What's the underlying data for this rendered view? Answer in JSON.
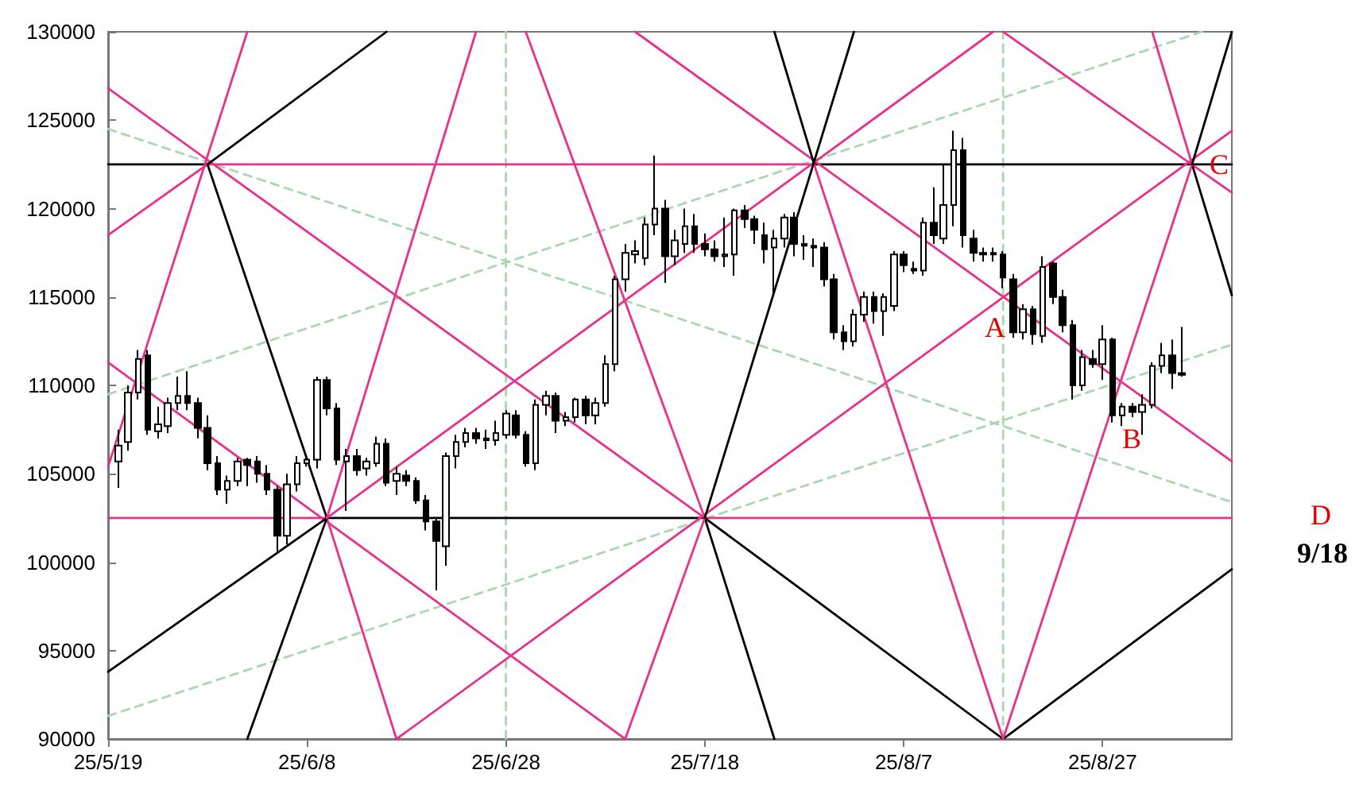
{
  "chart_data": {
    "type": "candlestick",
    "color": "#000000",
    "xlim": [
      "--05-19",
      "--09-09"
    ],
    "ylim": [
      90000,
      130000
    ],
    "xticks": [
      {
        "value": "--05-19",
        "label": "25/5/19"
      },
      {
        "value": "--06-08",
        "label": "25/6/8"
      },
      {
        "value": "--06-28",
        "label": "25/6/28"
      },
      {
        "value": "--07-18",
        "label": "25/7/18"
      },
      {
        "value": "--08-07",
        "label": "25/8/7"
      },
      {
        "value": "--08-27",
        "label": "25/8/27"
      }
    ],
    "yticks": [
      90000,
      95000,
      100000,
      105000,
      110000,
      115000,
      120000,
      125000,
      130000
    ],
    "x": [
      "--05-20",
      "--05-21",
      "--05-22",
      "--05-23",
      "--05-24",
      "--05-25",
      "--05-26",
      "--05-27",
      "--05-28",
      "--05-29",
      "--05-30",
      "--05-31",
      "--06-01",
      "--06-02",
      "--06-03",
      "--06-04",
      "--06-05",
      "--06-06",
      "--06-07",
      "--06-08",
      "--06-09",
      "--06-10",
      "--06-11",
      "--06-12",
      "--06-13",
      "--06-14",
      "--06-15",
      "--06-16",
      "--06-17",
      "--06-18",
      "--06-19",
      "--06-20",
      "--06-21",
      "--06-22",
      "--06-23",
      "--06-24",
      "--06-25",
      "--06-26",
      "--06-27",
      "--06-28",
      "--06-29",
      "--06-30",
      "--07-01",
      "--07-02",
      "--07-03",
      "--07-04",
      "--07-05",
      "--07-06",
      "--07-07",
      "--07-08",
      "--07-09",
      "--07-10",
      "--07-11",
      "--07-12",
      "--07-13",
      "--07-14",
      "--07-15",
      "--07-16",
      "--07-17",
      "--07-18",
      "--07-19",
      "--07-20",
      "--07-21",
      "--07-22",
      "--07-23",
      "--07-24",
      "--07-25",
      "--07-26",
      "--07-27",
      "--07-28",
      "--07-29",
      "--07-30",
      "--07-31",
      "--08-01",
      "--08-02",
      "--08-03",
      "--08-04",
      "--08-05",
      "--08-06",
      "--08-07",
      "--08-08",
      "--08-09",
      "--08-10",
      "--08-11",
      "--08-12",
      "--08-13",
      "--08-14",
      "--08-15",
      "--08-16",
      "--08-17",
      "--08-18",
      "--08-19",
      "--08-20",
      "--08-21",
      "--08-22",
      "--08-23",
      "--08-24",
      "--08-25",
      "--08-26",
      "--08-27",
      "--08-28",
      "--08-29",
      "--08-30",
      "--08-31",
      "--09-01",
      "--09-02",
      "--09-03",
      "--09-04"
    ],
    "ohlc": [
      [
        105700,
        107500,
        104200,
        106600
      ],
      [
        106800,
        110000,
        106300,
        109600
      ],
      [
        109600,
        112000,
        109200,
        111500
      ],
      [
        111700,
        112000,
        107200,
        107500
      ],
      [
        107400,
        108800,
        107000,
        107800
      ],
      [
        107700,
        109300,
        107300,
        109000
      ],
      [
        109000,
        110500,
        108600,
        109400
      ],
      [
        109400,
        110800,
        108600,
        109000
      ],
      [
        109000,
        109300,
        107000,
        107600
      ],
      [
        107600,
        108300,
        105200,
        105600
      ],
      [
        105600,
        106000,
        103800,
        104100
      ],
      [
        104100,
        104900,
        103300,
        104600
      ],
      [
        104600,
        105900,
        104300,
        105700
      ],
      [
        105800,
        105900,
        104300,
        105500
      ],
      [
        105700,
        106000,
        104500,
        105000
      ],
      [
        105000,
        105500,
        103800,
        104100
      ],
      [
        104100,
        104300,
        100500,
        101500
      ],
      [
        101500,
        105000,
        101000,
        104400
      ],
      [
        104400,
        106000,
        104000,
        105600
      ],
      [
        105600,
        106000,
        105400,
        105800
      ],
      [
        105800,
        110500,
        105300,
        110300
      ],
      [
        110300,
        110500,
        108300,
        108700
      ],
      [
        108700,
        109000,
        105500,
        105800
      ],
      [
        105700,
        106400,
        102900,
        106000
      ],
      [
        106000,
        106400,
        104900,
        105200
      ],
      [
        105300,
        105900,
        104900,
        105700
      ],
      [
        105600,
        107100,
        105400,
        106700
      ],
      [
        106700,
        107000,
        104300,
        104500
      ],
      [
        104600,
        105400,
        103800,
        105000
      ],
      [
        104900,
        105200,
        104300,
        104600
      ],
      [
        104600,
        104800,
        103300,
        103500
      ],
      [
        103500,
        103800,
        101800,
        102300
      ],
      [
        102300,
        102500,
        98400,
        101200
      ],
      [
        100900,
        106200,
        99800,
        106000
      ],
      [
        106000,
        107200,
        105300,
        106800
      ],
      [
        106800,
        107600,
        106500,
        107300
      ],
      [
        107300,
        107600,
        106700,
        107000
      ],
      [
        107000,
        107500,
        106400,
        106900
      ],
      [
        106900,
        108000,
        106600,
        107300
      ],
      [
        107200,
        108600,
        107000,
        108400
      ],
      [
        108300,
        108600,
        107000,
        107200
      ],
      [
        107200,
        107400,
        105400,
        105600
      ],
      [
        105600,
        109200,
        105200,
        108900
      ],
      [
        108900,
        109700,
        108300,
        109400
      ],
      [
        109400,
        109600,
        107300,
        108000
      ],
      [
        108000,
        108500,
        107700,
        108200
      ],
      [
        108200,
        109300,
        107900,
        109200
      ],
      [
        109200,
        109400,
        107800,
        108300
      ],
      [
        108300,
        109300,
        107800,
        109000
      ],
      [
        109000,
        111700,
        108800,
        111200
      ],
      [
        111200,
        116200,
        110800,
        116000
      ],
      [
        116000,
        118000,
        115300,
        117500
      ],
      [
        117400,
        118200,
        116900,
        117600
      ],
      [
        117200,
        119500,
        116800,
        119100
      ],
      [
        119100,
        123000,
        118500,
        120000
      ],
      [
        120000,
        120500,
        115800,
        117300
      ],
      [
        117300,
        118800,
        116800,
        118200
      ],
      [
        118000,
        120000,
        117500,
        119000
      ],
      [
        119000,
        119700,
        117500,
        118000
      ],
      [
        118000,
        118600,
        117300,
        117700
      ],
      [
        117700,
        118200,
        117000,
        117300
      ],
      [
        117300,
        119500,
        116700,
        117400
      ],
      [
        117400,
        120000,
        116200,
        119900
      ],
      [
        119900,
        120200,
        118900,
        119400
      ],
      [
        119400,
        119600,
        118000,
        118800
      ],
      [
        118500,
        119200,
        116900,
        117700
      ],
      [
        117800,
        118800,
        115100,
        118300
      ],
      [
        118300,
        119700,
        117800,
        119500
      ],
      [
        119500,
        119800,
        117300,
        118000
      ],
      [
        118000,
        118500,
        117100,
        117900
      ],
      [
        117900,
        118300,
        116700,
        117800
      ],
      [
        117800,
        118100,
        115600,
        116000
      ],
      [
        116000,
        116300,
        112600,
        113000
      ],
      [
        113000,
        113400,
        112000,
        112500
      ],
      [
        112500,
        114300,
        112200,
        114000
      ],
      [
        114000,
        115300,
        113600,
        115000
      ],
      [
        115000,
        115300,
        113500,
        114200
      ],
      [
        114200,
        115200,
        112800,
        115000
      ],
      [
        114500,
        117600,
        114200,
        117400
      ],
      [
        117400,
        117600,
        116400,
        116800
      ],
      [
        116600,
        117000,
        116300,
        116500
      ],
      [
        116500,
        119500,
        116200,
        119200
      ],
      [
        119200,
        121200,
        118000,
        118500
      ],
      [
        118300,
        122500,
        118000,
        120200
      ],
      [
        120200,
        124400,
        119000,
        123300
      ],
      [
        123300,
        124000,
        117800,
        118500
      ],
      [
        118300,
        118800,
        117000,
        117500
      ],
      [
        117500,
        117800,
        117000,
        117400
      ],
      [
        117400,
        117800,
        117000,
        117500
      ],
      [
        117400,
        117600,
        115500,
        116100
      ],
      [
        116000,
        116300,
        112700,
        113000
      ],
      [
        113000,
        114600,
        112600,
        114300
      ],
      [
        114300,
        114500,
        112300,
        112900
      ],
      [
        112800,
        117300,
        112400,
        116700
      ],
      [
        116900,
        117000,
        114600,
        115000
      ],
      [
        115000,
        115400,
        113000,
        113400
      ],
      [
        113400,
        113700,
        109200,
        110000
      ],
      [
        110000,
        112000,
        109700,
        111600
      ],
      [
        111500,
        112000,
        111000,
        111200
      ],
      [
        111200,
        113400,
        110300,
        112600
      ],
      [
        112600,
        112700,
        107900,
        108300
      ],
      [
        108300,
        109000,
        107700,
        108800
      ],
      [
        108800,
        109000,
        108200,
        108500
      ],
      [
        108500,
        109500,
        107200,
        108900
      ],
      [
        108900,
        111300,
        108700,
        111100
      ],
      [
        111100,
        112400,
        110700,
        111700
      ],
      [
        111700,
        112600,
        109800,
        110700
      ],
      [
        110700,
        113300,
        110500,
        110600
      ]
    ],
    "series": [
      {
        "type": "line",
        "color": "#a9d8ae",
        "line_style": "dashed",
        "x": [
          "--06-28",
          "--06-28"
        ],
        "values": [
          90000,
          130000
        ]
      },
      {
        "type": "line",
        "color": "#a9d8ae",
        "line_style": "dashed",
        "x": [
          "--08-17",
          "--08-17"
        ],
        "values": [
          90000,
          130000
        ]
      },
      {
        "type": "line",
        "color": "#a9d8ae",
        "line_style": "dashed",
        "x": [
          "--05-19",
          "--09-09"
        ],
        "values": [
          124500,
          103400
        ]
      },
      {
        "type": "line",
        "color": "#a9d8ae",
        "line_style": "dashed",
        "x": [
          "--05-19",
          "--09-06"
        ],
        "values": [
          109500,
          130000
        ]
      },
      {
        "type": "line",
        "color": "#a9d8ae",
        "line_style": "dashed",
        "x": [
          "--05-19",
          "--09-09"
        ],
        "values": [
          91300,
          112300
        ]
      },
      {
        "type": "line",
        "color": "#000000",
        "x": [
          "--05-19",
          "--05-29"
        ],
        "values": [
          122500,
          122500
        ]
      },
      {
        "type": "line",
        "color": "#e8318a",
        "x": [
          "--05-29",
          "--07-29"
        ],
        "values": [
          122500,
          122500
        ]
      },
      {
        "type": "line",
        "color": "#000000",
        "x": [
          "--07-29",
          "--09-09"
        ],
        "values": [
          122500,
          122500
        ]
      },
      {
        "type": "line",
        "color": "#e8318a",
        "x": [
          "--05-19",
          "--06-10"
        ],
        "values": [
          102500,
          102500
        ]
      },
      {
        "type": "line",
        "color": "#000000",
        "x": [
          "--06-10",
          "--07-18"
        ],
        "values": [
          102500,
          102500
        ]
      },
      {
        "type": "line",
        "color": "#e8318a",
        "x": [
          "--07-18",
          "--09-09"
        ],
        "values": [
          102500,
          102500
        ]
      },
      {
        "type": "line",
        "color": "#e8318a",
        "x": [
          "--05-19",
          "--07-18"
        ],
        "values": [
          126800,
          102500
        ]
      },
      {
        "type": "line",
        "color": "#000000",
        "x": [
          "--07-18",
          "--08-17"
        ],
        "values": [
          102500,
          90000
        ]
      },
      {
        "type": "line",
        "color": "#e8318a",
        "x": [
          "--05-19",
          "--07-10"
        ],
        "values": [
          111300,
          90000
        ]
      },
      {
        "type": "line",
        "color": "#e8318a",
        "x": [
          "--07-11",
          "--09-09"
        ],
        "values": [
          130000,
          105700
        ]
      },
      {
        "type": "line",
        "color": "#e8318a",
        "x": [
          "--08-17",
          "--09-09"
        ],
        "values": [
          130000,
          120900
        ]
      },
      {
        "type": "line",
        "color": "#000000",
        "x": [
          "--05-19",
          "--06-10"
        ],
        "values": [
          93800,
          102500
        ]
      },
      {
        "type": "line",
        "color": "#e8318a",
        "x": [
          "--06-10",
          "--08-16"
        ],
        "values": [
          102500,
          130000
        ]
      },
      {
        "type": "line",
        "color": "#e8318a",
        "x": [
          "--06-17",
          "--09-09"
        ],
        "values": [
          90000,
          124400
        ]
      },
      {
        "type": "line",
        "color": "#000000",
        "x": [
          "--08-17",
          "--09-09"
        ],
        "values": [
          90000,
          99600
        ]
      },
      {
        "type": "line",
        "color": "#e8318a",
        "x": [
          "--05-19",
          "--05-29"
        ],
        "values": [
          118500,
          122500
        ]
      },
      {
        "type": "line",
        "color": "#000000",
        "x": [
          "--05-29",
          "--06-16"
        ],
        "values": [
          122500,
          130000
        ]
      },
      {
        "type": "line",
        "color": "#000000",
        "x": [
          "--05-29",
          "--06-10"
        ],
        "values": [
          122500,
          102500
        ]
      },
      {
        "type": "line",
        "color": "#e8318a",
        "x": [
          "--06-10",
          "--06-17"
        ],
        "values": [
          102500,
          90000
        ]
      },
      {
        "type": "line",
        "color": "#000000",
        "x": [
          "--07-25",
          "--07-29"
        ],
        "values": [
          130000,
          122500
        ]
      },
      {
        "type": "line",
        "color": "#e8318a",
        "x": [
          "--07-29",
          "--08-17"
        ],
        "values": [
          122500,
          90000
        ]
      },
      {
        "type": "line",
        "color": "#e8318a",
        "x": [
          "--06-30",
          "--07-18"
        ],
        "values": [
          130000,
          102500
        ]
      },
      {
        "type": "line",
        "color": "#000000",
        "x": [
          "--07-18",
          "--07-25"
        ],
        "values": [
          102500,
          90000
        ]
      },
      {
        "type": "line",
        "color": "#e8318a",
        "x": [
          "--09-01",
          "--09-05"
        ],
        "values": [
          130000,
          122500
        ]
      },
      {
        "type": "line",
        "color": "#000000",
        "x": [
          "--09-05",
          "--09-09"
        ],
        "values": [
          122500,
          115100
        ]
      },
      {
        "type": "line",
        "color": "#e8318a",
        "x": [
          "--05-19",
          "--06-02"
        ],
        "values": [
          105400,
          130000
        ]
      },
      {
        "type": "line",
        "color": "#000000",
        "x": [
          "--06-02",
          "--06-10"
        ],
        "values": [
          90000,
          102500
        ]
      },
      {
        "type": "line",
        "color": "#e8318a",
        "x": [
          "--06-10",
          "--06-25"
        ],
        "values": [
          102500,
          130000
        ]
      },
      {
        "type": "line",
        "color": "#e8318a",
        "x": [
          "--07-10",
          "--07-18"
        ],
        "values": [
          90000,
          102500
        ]
      },
      {
        "type": "line",
        "color": "#000000",
        "x": [
          "--07-18",
          "--08-02"
        ],
        "values": [
          102500,
          130000
        ]
      },
      {
        "type": "line",
        "color": "#e8318a",
        "x": [
          "--08-17",
          "--09-05"
        ],
        "values": [
          90000,
          122500
        ]
      },
      {
        "type": "line",
        "color": "#000000",
        "x": [
          "--09-05",
          "--09-09"
        ],
        "values": [
          122500,
          130000
        ]
      }
    ],
    "annotations": [
      "A",
      "B",
      {
        "text": "C",
        "x": "--09-05",
        "y": 122500
      },
      "D",
      "9/18"
    ]
  }
}
